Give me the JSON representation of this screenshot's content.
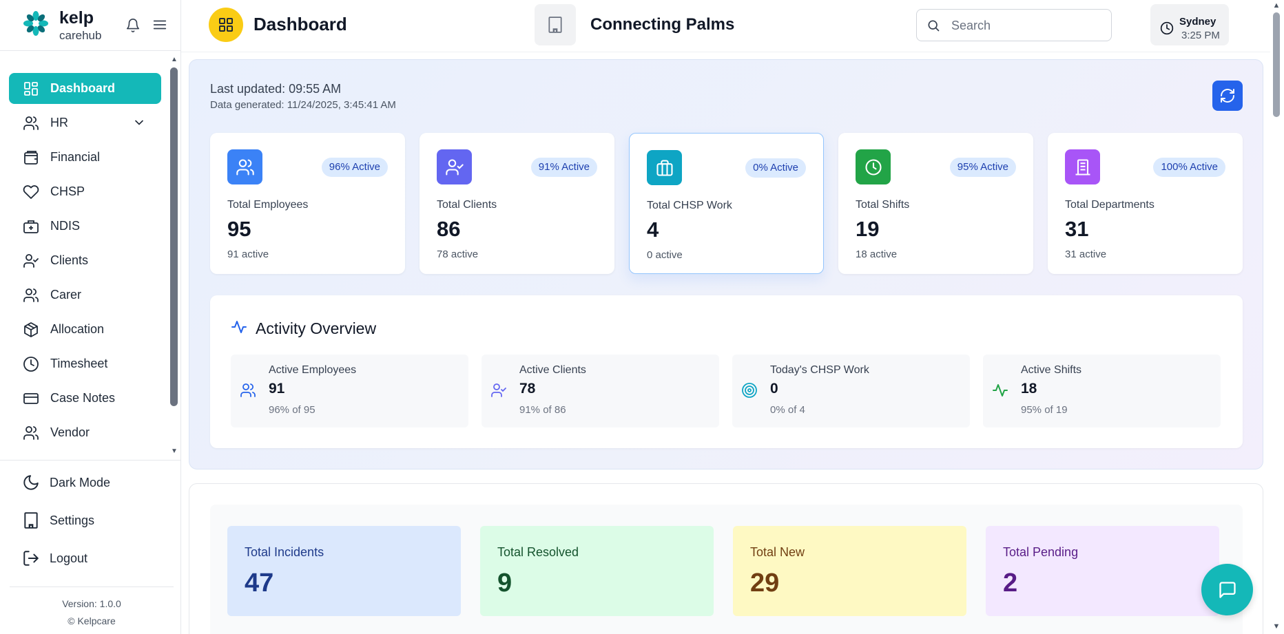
{
  "brand": {
    "name": "kelp",
    "sub": "carehub"
  },
  "sidebar": {
    "items": [
      {
        "label": "Dashboard",
        "icon": "dashboard-icon",
        "active": true
      },
      {
        "label": "HR",
        "icon": "users-icon",
        "has_children": true
      },
      {
        "label": "Financial",
        "icon": "wallet-icon"
      },
      {
        "label": "CHSP",
        "icon": "heart-icon"
      },
      {
        "label": "NDIS",
        "icon": "medical-kit-icon"
      },
      {
        "label": "Clients",
        "icon": "user-check-icon"
      },
      {
        "label": "Carer",
        "icon": "users-icon"
      },
      {
        "label": "Allocation",
        "icon": "package-icon"
      },
      {
        "label": "Timesheet",
        "icon": "clock-icon"
      },
      {
        "label": "Case Notes",
        "icon": "credit-card-icon"
      },
      {
        "label": "Vendor",
        "icon": "users-icon"
      }
    ],
    "bottom": {
      "dark_mode": "Dark Mode",
      "settings": "Settings",
      "logout": "Logout"
    },
    "version": "Version: 1.0.0",
    "copyright": "© Kelpcare"
  },
  "header": {
    "title": "Dashboard",
    "organization": "Connecting Palms",
    "search_placeholder": "Search",
    "clock": {
      "city": "Sydney",
      "time": "3:25 PM"
    }
  },
  "overview": {
    "last_updated": "Last updated: 09:55 AM",
    "generated": "Data generated: 11/24/2025, 3:45:41 AM",
    "stats": [
      {
        "label": "Total Employees",
        "value": "95",
        "sub": "91 active",
        "badge": "96% Active",
        "color": "#3b82f6",
        "icon": "users-icon"
      },
      {
        "label": "Total Clients",
        "value": "86",
        "sub": "78 active",
        "badge": "91% Active",
        "color": "#6366f1",
        "icon": "user-check-icon"
      },
      {
        "label": "Total CHSP Work",
        "value": "4",
        "sub": "0 active",
        "badge": "0% Active",
        "color": "#0ea5c4",
        "icon": "briefcase-icon"
      },
      {
        "label": "Total Shifts",
        "value": "19",
        "sub": "18 active",
        "badge": "95% Active",
        "color": "#22a447",
        "icon": "clock-icon"
      },
      {
        "label": "Total Departments",
        "value": "31",
        "sub": "31 active",
        "badge": "100% Active",
        "color": "#a855f7",
        "icon": "building-icon"
      }
    ],
    "activity": {
      "title": "Activity Overview",
      "cards": [
        {
          "label": "Active Employees",
          "value": "91",
          "sub": "96% of 95",
          "icon": "users-icon"
        },
        {
          "label": "Active Clients",
          "value": "78",
          "sub": "91% of 86",
          "icon": "user-check-icon"
        },
        {
          "label": "Today's CHSP Work",
          "value": "0",
          "sub": "0% of 4",
          "icon": "target-icon"
        },
        {
          "label": "Active Shifts",
          "value": "18",
          "sub": "95% of 19",
          "icon": "activity-icon"
        }
      ]
    }
  },
  "incidents": [
    {
      "label": "Total Incidents",
      "value": "47",
      "bg": "#dbe8fd",
      "fg": "#1e3a8a"
    },
    {
      "label": "Total Resolved",
      "value": "9",
      "bg": "#dcfce7",
      "fg": "#14532d"
    },
    {
      "label": "Total New",
      "value": "29",
      "bg": "#fef9c3",
      "fg": "#713f12"
    },
    {
      "label": "Total Pending",
      "value": "2",
      "bg": "#f3e8ff",
      "fg": "#581c87"
    }
  ]
}
